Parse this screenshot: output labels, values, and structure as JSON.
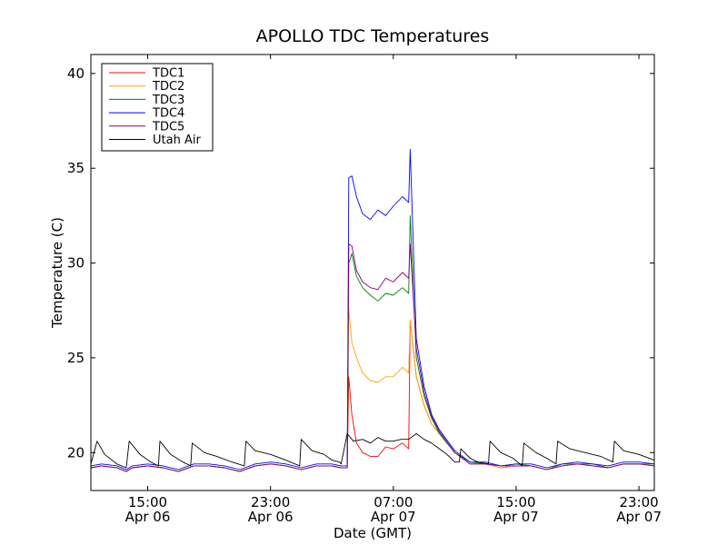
{
  "chart_data": {
    "type": "line",
    "title": "APOLLO TDC Temperatures",
    "xlabel": "Date (GMT)",
    "ylabel": "Temperature (C)",
    "x_unit": "hours since Apr 06 00:00 GMT",
    "xlim": [
      11.3,
      48.0
    ],
    "ylim": [
      18,
      41
    ],
    "grid": false,
    "legend_position": "upper-left",
    "x_ticks": [
      {
        "value": 15,
        "label_time": "15:00",
        "label_date": "Apr 06"
      },
      {
        "value": 23,
        "label_time": "23:00",
        "label_date": "Apr 06"
      },
      {
        "value": 31,
        "label_time": "07:00",
        "label_date": "Apr 07"
      },
      {
        "value": 39,
        "label_time": "15:00",
        "label_date": "Apr 07"
      },
      {
        "value": 47,
        "label_time": "23:00",
        "label_date": "Apr 07"
      }
    ],
    "y_ticks": [
      20,
      25,
      30,
      35,
      40
    ],
    "series": [
      {
        "name": "TDC1",
        "color": "#ff0000",
        "x": [
          11.3,
          12.0,
          13.0,
          13.6,
          14.0,
          15.0,
          16.0,
          17.0,
          18.0,
          19.0,
          20.0,
          21.0,
          22.0,
          23.0,
          24.0,
          25.0,
          26.0,
          27.0,
          27.6,
          28.0,
          28.1,
          28.3,
          28.6,
          29.0,
          29.5,
          30.0,
          30.5,
          31.0,
          31.6,
          32.0,
          32.1,
          32.5,
          33.0,
          33.5,
          34.0,
          35.0,
          36.0,
          37.0,
          38.0,
          39.0,
          40.0,
          41.0,
          42.0,
          43.0,
          44.0,
          45.0,
          46.0,
          47.0,
          48.0
        ],
        "y": [
          19.2,
          19.3,
          19.2,
          19.0,
          19.2,
          19.3,
          19.2,
          19.0,
          19.3,
          19.3,
          19.2,
          19.0,
          19.3,
          19.4,
          19.3,
          19.1,
          19.3,
          19.3,
          19.2,
          19.2,
          24.0,
          22.0,
          20.5,
          20.0,
          19.8,
          19.8,
          20.3,
          20.2,
          20.5,
          20.2,
          27.0,
          24.0,
          22.5,
          21.5,
          21.0,
          20.0,
          19.4,
          19.4,
          19.2,
          19.3,
          19.3,
          19.1,
          19.3,
          19.4,
          19.3,
          19.2,
          19.4,
          19.4,
          19.3
        ]
      },
      {
        "name": "TDC2",
        "color": "#ffa500",
        "x": [
          11.3,
          12.0,
          13.0,
          13.6,
          14.0,
          15.0,
          16.0,
          17.0,
          18.0,
          19.0,
          20.0,
          21.0,
          22.0,
          23.0,
          24.0,
          25.0,
          26.0,
          27.0,
          27.6,
          28.0,
          28.1,
          28.3,
          28.6,
          29.0,
          29.5,
          30.0,
          30.5,
          31.0,
          31.6,
          32.0,
          32.1,
          32.5,
          33.0,
          33.5,
          34.0,
          35.0,
          36.0,
          37.0,
          38.0,
          39.0,
          40.0,
          41.0,
          42.0,
          43.0,
          44.0,
          45.0,
          46.0,
          47.0,
          48.0
        ],
        "y": [
          19.2,
          19.3,
          19.2,
          19.0,
          19.2,
          19.3,
          19.2,
          19.0,
          19.3,
          19.3,
          19.2,
          19.0,
          19.3,
          19.4,
          19.3,
          19.1,
          19.3,
          19.3,
          19.2,
          19.2,
          27.6,
          25.8,
          25.0,
          24.2,
          23.8,
          23.7,
          24.0,
          24.0,
          24.5,
          24.2,
          27.0,
          24.0,
          22.5,
          21.5,
          21.0,
          20.0,
          19.4,
          19.4,
          19.2,
          19.3,
          19.3,
          19.1,
          19.3,
          19.4,
          19.3,
          19.2,
          19.4,
          19.4,
          19.3
        ]
      },
      {
        "name": "TDC3",
        "color": "#008000",
        "x": [
          11.3,
          12.0,
          13.0,
          13.6,
          14.0,
          15.0,
          16.0,
          17.0,
          18.0,
          19.0,
          20.0,
          21.0,
          22.0,
          23.0,
          24.0,
          25.0,
          26.0,
          27.0,
          27.6,
          28.0,
          28.1,
          28.3,
          28.6,
          29.0,
          29.5,
          30.0,
          30.5,
          31.0,
          31.6,
          32.0,
          32.1,
          32.5,
          33.0,
          33.5,
          34.0,
          35.0,
          36.0,
          37.0,
          38.0,
          39.0,
          40.0,
          41.0,
          42.0,
          43.0,
          44.0,
          45.0,
          46.0,
          47.0,
          48.0
        ],
        "y": [
          19.2,
          19.3,
          19.2,
          19.0,
          19.2,
          19.3,
          19.2,
          19.0,
          19.3,
          19.3,
          19.2,
          19.0,
          19.3,
          19.4,
          19.3,
          19.1,
          19.3,
          19.3,
          19.2,
          19.2,
          30.0,
          30.5,
          29.3,
          28.7,
          28.3,
          28.0,
          28.4,
          28.3,
          28.7,
          28.4,
          32.5,
          25.0,
          23.0,
          21.8,
          21.0,
          20.0,
          19.5,
          19.4,
          19.3,
          19.4,
          19.3,
          19.1,
          19.4,
          19.4,
          19.4,
          19.2,
          19.4,
          19.4,
          19.4
        ]
      },
      {
        "name": "TDC4",
        "color": "#0000ff",
        "x": [
          11.3,
          12.0,
          13.0,
          13.6,
          14.0,
          15.0,
          16.0,
          17.0,
          18.0,
          19.0,
          20.0,
          21.0,
          22.0,
          23.0,
          24.0,
          25.0,
          26.0,
          27.0,
          27.6,
          28.0,
          28.1,
          28.3,
          28.6,
          29.0,
          29.5,
          30.0,
          30.5,
          31.0,
          31.6,
          32.0,
          32.1,
          32.5,
          33.0,
          33.5,
          34.0,
          35.0,
          36.0,
          37.0,
          38.0,
          39.0,
          40.0,
          41.0,
          42.0,
          43.0,
          44.0,
          45.0,
          46.0,
          47.0,
          48.0
        ],
        "y": [
          19.3,
          19.4,
          19.3,
          19.1,
          19.3,
          19.4,
          19.3,
          19.1,
          19.4,
          19.4,
          19.3,
          19.1,
          19.4,
          19.5,
          19.4,
          19.2,
          19.4,
          19.4,
          19.3,
          19.3,
          34.5,
          34.6,
          33.5,
          32.6,
          32.3,
          32.8,
          32.5,
          33.0,
          33.5,
          33.2,
          36.0,
          26.0,
          23.5,
          22.0,
          21.2,
          20.1,
          19.5,
          19.5,
          19.3,
          19.4,
          19.4,
          19.2,
          19.4,
          19.5,
          19.4,
          19.3,
          19.5,
          19.5,
          19.4
        ]
      },
      {
        "name": "TDC5",
        "color": "#800080",
        "x": [
          11.3,
          12.0,
          13.0,
          13.6,
          14.0,
          15.0,
          16.0,
          17.0,
          18.0,
          19.0,
          20.0,
          21.0,
          22.0,
          23.0,
          24.0,
          25.0,
          26.0,
          27.0,
          27.6,
          28.0,
          28.1,
          28.3,
          28.6,
          29.0,
          29.5,
          30.0,
          30.5,
          31.0,
          31.6,
          32.0,
          32.1,
          32.5,
          33.0,
          33.5,
          34.0,
          35.0,
          36.0,
          37.0,
          38.0,
          39.0,
          40.0,
          41.0,
          42.0,
          43.0,
          44.0,
          45.0,
          46.0,
          47.0,
          48.0
        ],
        "y": [
          19.2,
          19.3,
          19.2,
          19.0,
          19.2,
          19.3,
          19.2,
          19.0,
          19.3,
          19.3,
          19.2,
          19.0,
          19.3,
          19.4,
          19.3,
          19.1,
          19.3,
          19.3,
          19.2,
          19.2,
          31.0,
          30.9,
          29.6,
          29.0,
          28.7,
          28.6,
          29.2,
          29.0,
          29.5,
          29.2,
          31.0,
          25.5,
          23.2,
          21.9,
          21.1,
          20.0,
          19.4,
          19.4,
          19.3,
          19.3,
          19.3,
          19.1,
          19.3,
          19.4,
          19.3,
          19.2,
          19.4,
          19.4,
          19.3
        ]
      },
      {
        "name": "Utah Air",
        "color": "#000000",
        "x": [
          11.3,
          11.7,
          12.2,
          13.0,
          13.6,
          13.8,
          14.5,
          15.2,
          15.7,
          15.8,
          16.5,
          17.3,
          17.8,
          17.9,
          18.7,
          19.5,
          20.5,
          21.3,
          21.4,
          22.0,
          23.0,
          24.0,
          24.9,
          25.0,
          25.7,
          26.5,
          27.0,
          27.5,
          27.6,
          28.0,
          28.4,
          29.0,
          29.5,
          30.0,
          30.5,
          31.0,
          31.5,
          32.0,
          32.5,
          33.0,
          33.5,
          34.0,
          34.5,
          35.0,
          35.3,
          35.4,
          36.0,
          36.5,
          37.2,
          37.3,
          38.0,
          38.8,
          39.4,
          39.5,
          40.3,
          41.0,
          41.6,
          41.7,
          42.5,
          43.5,
          44.5,
          45.3,
          45.4,
          46.0,
          47.0,
          48.0
        ],
        "y": [
          19.4,
          20.6,
          19.9,
          19.4,
          19.2,
          20.6,
          19.9,
          19.5,
          19.3,
          20.6,
          19.9,
          19.5,
          19.3,
          20.5,
          20.0,
          19.8,
          19.5,
          19.3,
          20.6,
          20.1,
          19.9,
          19.6,
          19.3,
          20.7,
          20.1,
          19.9,
          19.6,
          19.5,
          19.4,
          21.0,
          20.6,
          20.7,
          20.5,
          20.8,
          20.6,
          20.6,
          20.7,
          20.7,
          21.0,
          20.7,
          20.5,
          20.2,
          19.9,
          19.5,
          19.5,
          20.2,
          19.7,
          19.5,
          19.4,
          20.6,
          20.0,
          19.7,
          19.3,
          20.5,
          20.0,
          19.7,
          19.4,
          20.6,
          20.2,
          20.0,
          19.8,
          19.5,
          20.6,
          20.1,
          19.9,
          19.6
        ]
      }
    ]
  }
}
